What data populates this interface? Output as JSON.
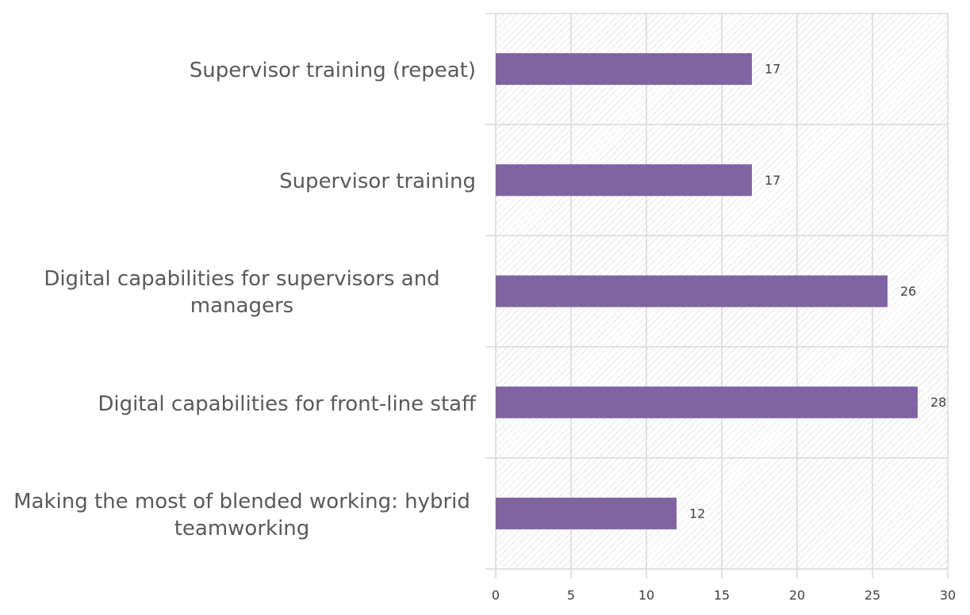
{
  "chart_data": {
    "type": "bar",
    "orientation": "horizontal",
    "categories": [
      "Supervisor training (repeat)",
      "Supervisor training",
      "Digital capabilities for supervisors and managers",
      "Digital capabilities for front-line staff",
      "Making the most of blended working: hybrid teamworking"
    ],
    "values": [
      17,
      17,
      26,
      28,
      12
    ],
    "color": "#8064a2",
    "xlim": [
      0,
      30
    ],
    "xticks": [
      0,
      5,
      10,
      15,
      20,
      25,
      30
    ],
    "grid": true
  }
}
